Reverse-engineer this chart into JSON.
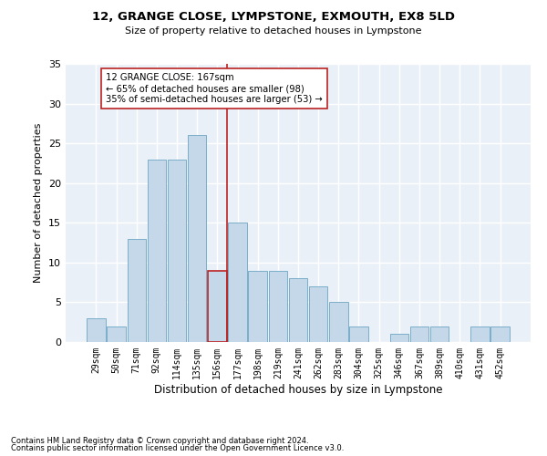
{
  "title": "12, GRANGE CLOSE, LYMPSTONE, EXMOUTH, EX8 5LD",
  "subtitle": "Size of property relative to detached houses in Lympstone",
  "xlabel": "Distribution of detached houses by size in Lympstone",
  "ylabel": "Number of detached properties",
  "categories": [
    "29sqm",
    "50sqm",
    "71sqm",
    "92sqm",
    "114sqm",
    "135sqm",
    "156sqm",
    "177sqm",
    "198sqm",
    "219sqm",
    "241sqm",
    "262sqm",
    "283sqm",
    "304sqm",
    "325sqm",
    "346sqm",
    "367sqm",
    "389sqm",
    "410sqm",
    "431sqm",
    "452sqm"
  ],
  "values": [
    3,
    2,
    13,
    23,
    23,
    26,
    9,
    15,
    9,
    9,
    8,
    7,
    5,
    2,
    0,
    1,
    2,
    2,
    0,
    2,
    2
  ],
  "bar_color": "#c5d8ea",
  "bar_edge_color": "#7aaec8",
  "bar_highlight_edge_color": "#bb2222",
  "highlight_index": 6,
  "vline_color": "#bb2222",
  "annotation_text": "12 GRANGE CLOSE: 167sqm\n← 65% of detached houses are smaller (98)\n35% of semi-detached houses are larger (53) →",
  "annotation_box_color": "#ffffff",
  "annotation_box_edge_color": "#bb2222",
  "ylim": [
    0,
    35
  ],
  "yticks": [
    0,
    5,
    10,
    15,
    20,
    25,
    30,
    35
  ],
  "background_color": "#eaf0f8",
  "grid_color": "#ffffff",
  "footnote1": "Contains HM Land Registry data © Crown copyright and database right 2024.",
  "footnote2": "Contains public sector information licensed under the Open Government Licence v3.0."
}
